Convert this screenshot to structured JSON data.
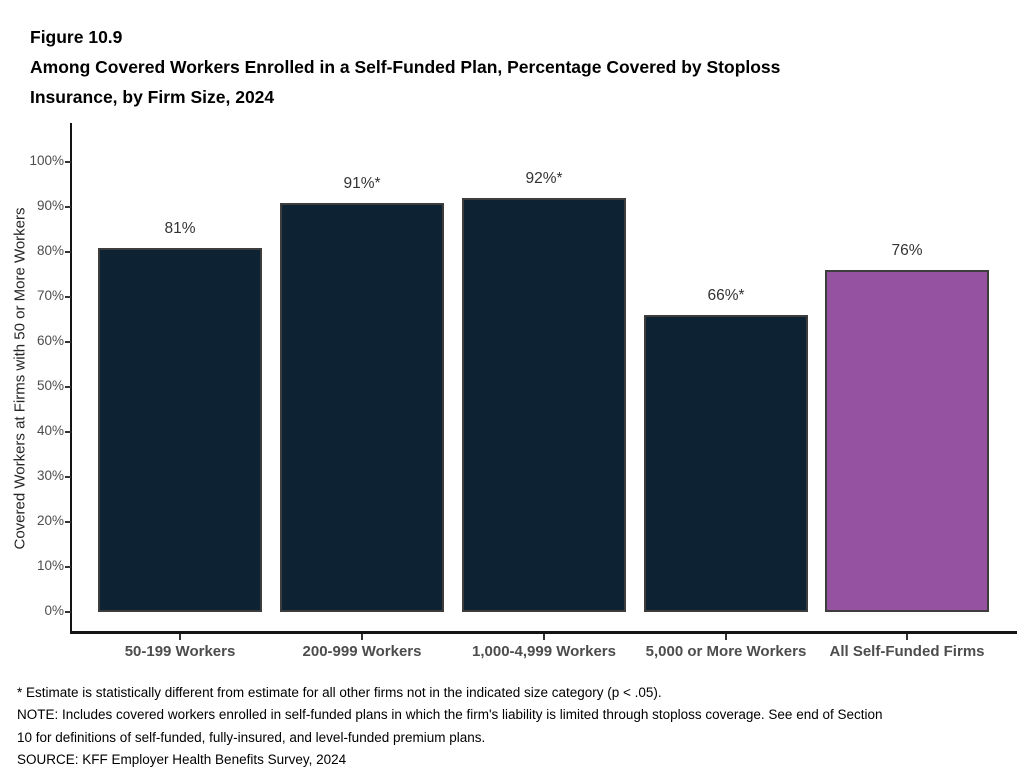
{
  "figure": {
    "label": "Figure 10.9",
    "title_lines": [
      "Among Covered Workers Enrolled in a Self-Funded Plan, Percentage Covered by Stoploss",
      "Insurance, by Firm Size, 2024"
    ]
  },
  "chart_data": {
    "type": "bar",
    "title": "Among Covered Workers Enrolled in a Self-Funded Plan, Percentage Covered by Stoploss Insurance, by Firm Size, 2024",
    "categories": [
      "50-199 Workers",
      "200-999 Workers",
      "1,000-4,999 Workers",
      "5,000 or More Workers",
      "All Self-Funded Firms"
    ],
    "values": [
      81,
      91,
      92,
      66,
      76
    ],
    "value_labels": [
      "81%",
      "91%*",
      "92%*",
      "66%*",
      "76%"
    ],
    "bar_colors": [
      "#0d2333",
      "#0d2333",
      "#0d2333",
      "#0d2333",
      "#9452a0"
    ],
    "xlabel": "",
    "ylabel": "Covered Workers at Firms with 50 or More Workers",
    "ylim": [
      0,
      100
    ],
    "ytick_values": [
      0,
      10,
      20,
      30,
      40,
      50,
      60,
      70,
      80,
      90,
      100
    ],
    "ytick_labels": [
      "0%",
      "10%",
      "20%",
      "30%",
      "40%",
      "50%",
      "60%",
      "70%",
      "80%",
      "90%",
      "100%"
    ],
    "grid": false,
    "legend": false
  },
  "footnotes": {
    "lines": [
      "* Estimate is statistically different from estimate for all other firms not in the indicated size category (p < .05).",
      "NOTE: Includes covered workers enrolled in self-funded plans in which the firm's liability is limited through stoploss coverage. See end of Section",
      "10 for definitions of self-funded, fully-insured, and level-funded premium plans.",
      "SOURCE: KFF Employer Health Benefits Survey, 2024"
    ]
  },
  "colors": {
    "bar_navy": "#0d2333",
    "bar_purple": "#9452a0",
    "bar_border": "#3d3d3d",
    "axis_line": "#141414",
    "tick_label": "#4d4d4d",
    "axis_label_bold": "#4d4d4d",
    "value_label": "#333333"
  }
}
